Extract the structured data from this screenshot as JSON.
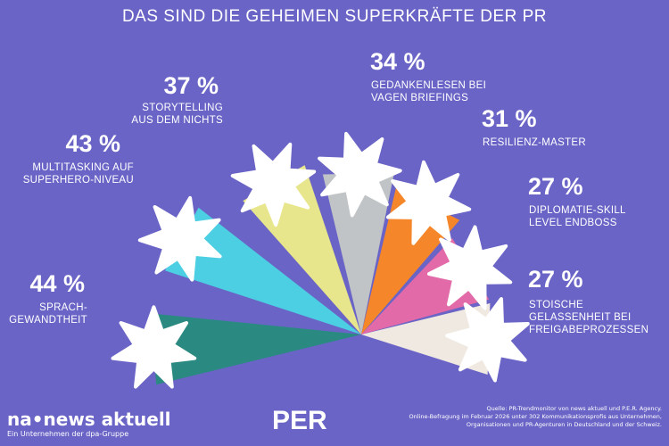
{
  "chart_data": {
    "type": "fan",
    "title": "DAS SIND DIE GEHEIMEN SUPERKRÄFTE DER PR",
    "categories": [
      "SPRACH-\nGEWANDTHEIT",
      "MULTITASKING AUF\nSUPERHERO-NIVEAU",
      "STORYTELLING\nAUS DEM NICHTS",
      "GEDANKENLESEN BEI\nVAGEN BRIEFINGS",
      "RESILIENZ-MASTER",
      "DIPLOMATIE-SKILL\nLEVEL ENDBOSS",
      "STOISCHE\nGELASSENHEIT BEI\nFREIGABEPROZESSEN"
    ],
    "values": [
      44,
      43,
      37,
      34,
      31,
      27,
      27
    ],
    "value_labels": [
      "44 %",
      "43 %",
      "37 %",
      "34 %",
      "31 %",
      "27 %",
      "27 %"
    ],
    "colors": [
      "#2a8a82",
      "#4ccfe2",
      "#e8e68c",
      "#c1c4c6",
      "#f5862a",
      "#e26aa8",
      "#efe9e1"
    ]
  },
  "footer": {
    "brand": "na•news aktuell",
    "brand_sub": "Ein Unternehmen der dpa-Gruppe",
    "partner": "PER",
    "source": [
      "Quelle: PR-Trendmonitor von news aktuell und P.E.R. Agency.",
      "Online-Befragung im Februar 2026 unter 302 Kommunikationsprofis aus Unternehmen,",
      "Organisationen und PR-Agenturen in Deutschland und der Schweiz."
    ]
  }
}
